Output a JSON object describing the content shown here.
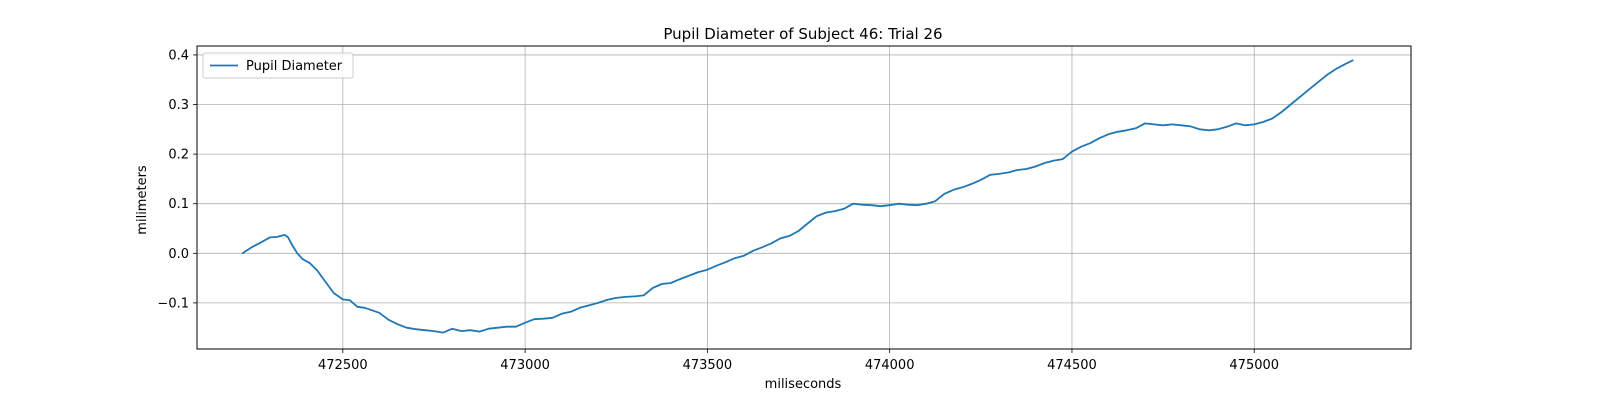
{
  "chart_data": {
    "type": "line",
    "title": "Pupil Diameter of Subject 46: Trial 26",
    "xlabel": "miliseconds",
    "ylabel": "milimeters",
    "xlim": [
      472100,
      475430
    ],
    "ylim": [
      -0.193,
      0.418
    ],
    "x_ticks": [
      472500,
      473000,
      473500,
      474000,
      474500,
      475000
    ],
    "y_ticks": [
      -0.1,
      0.0,
      0.1,
      0.2,
      0.3,
      0.4
    ],
    "x_tick_labels": [
      "472500",
      "473000",
      "473500",
      "474000",
      "474500",
      "475000"
    ],
    "y_tick_labels": [
      "−0.1",
      "0.0",
      "0.1",
      "0.2",
      "0.3",
      "0.4"
    ],
    "grid": true,
    "legend": {
      "placement": "top-left",
      "entries": [
        "Pupil Diameter"
      ]
    },
    "colors": {
      "series": "#1f77b4",
      "grid": "#b0b0b0",
      "axes": "#000000"
    },
    "series": [
      {
        "name": "Pupil Diameter",
        "x": [
          472225,
          472250,
          472275,
          472300,
          472320,
          472340,
          472350,
          472360,
          472375,
          472390,
          472410,
          472430,
          472450,
          472475,
          472500,
          472520,
          472540,
          472560,
          472580,
          472600,
          472625,
          472650,
          472675,
          472700,
          472725,
          472750,
          472775,
          472800,
          472825,
          472850,
          472875,
          472900,
          472925,
          472950,
          472975,
          473000,
          473025,
          473050,
          473075,
          473100,
          473125,
          473150,
          473175,
          473200,
          473225,
          473250,
          473275,
          473300,
          473325,
          473350,
          473375,
          473400,
          473425,
          473450,
          473475,
          473500,
          473525,
          473550,
          473575,
          473600,
          473625,
          473650,
          473675,
          473700,
          473725,
          473750,
          473775,
          473800,
          473825,
          473850,
          473875,
          473900,
          473925,
          473950,
          473975,
          474000,
          474025,
          474050,
          474075,
          474100,
          474125,
          474150,
          474175,
          474200,
          474225,
          474250,
          474275,
          474300,
          474325,
          474350,
          474375,
          474400,
          474425,
          474450,
          474475,
          474500,
          474525,
          474550,
          474575,
          474600,
          474625,
          474650,
          474675,
          474700,
          474725,
          474750,
          474775,
          474800,
          474825,
          474850,
          474875,
          474900,
          474925,
          474950,
          474975,
          475000,
          475025,
          475050,
          475075,
          475100,
          475125,
          475150,
          475175,
          475200,
          475225,
          475250,
          475270
        ],
        "values": [
          0.0,
          0.012,
          0.022,
          0.032,
          0.033,
          0.037,
          0.032,
          0.018,
          0.0,
          -0.012,
          -0.02,
          -0.035,
          -0.055,
          -0.08,
          -0.093,
          -0.095,
          -0.108,
          -0.11,
          -0.115,
          -0.12,
          -0.134,
          -0.143,
          -0.15,
          -0.153,
          -0.155,
          -0.157,
          -0.16,
          -0.152,
          -0.157,
          -0.155,
          -0.158,
          -0.152,
          -0.15,
          -0.148,
          -0.148,
          -0.14,
          -0.133,
          -0.132,
          -0.13,
          -0.122,
          -0.118,
          -0.11,
          -0.105,
          -0.1,
          -0.094,
          -0.09,
          -0.088,
          -0.087,
          -0.085,
          -0.07,
          -0.062,
          -0.06,
          -0.052,
          -0.045,
          -0.038,
          -0.033,
          -0.025,
          -0.018,
          -0.01,
          -0.005,
          0.005,
          0.012,
          0.02,
          0.03,
          0.035,
          0.045,
          0.06,
          0.075,
          0.082,
          0.085,
          0.09,
          0.1,
          0.098,
          0.097,
          0.095,
          0.097,
          0.1,
          0.098,
          0.097,
          0.1,
          0.105,
          0.12,
          0.128,
          0.133,
          0.14,
          0.148,
          0.158,
          0.16,
          0.163,
          0.168,
          0.17,
          0.175,
          0.182,
          0.187,
          0.19,
          0.205,
          0.215,
          0.222,
          0.232,
          0.24,
          0.245,
          0.248,
          0.252,
          0.262,
          0.26,
          0.258,
          0.26,
          0.258,
          0.256,
          0.25,
          0.248,
          0.25,
          0.255,
          0.262,
          0.258,
          0.26,
          0.265,
          0.272,
          0.285,
          0.3,
          0.315,
          0.33,
          0.345,
          0.36,
          0.372,
          0.382,
          0.389
        ]
      }
    ]
  }
}
